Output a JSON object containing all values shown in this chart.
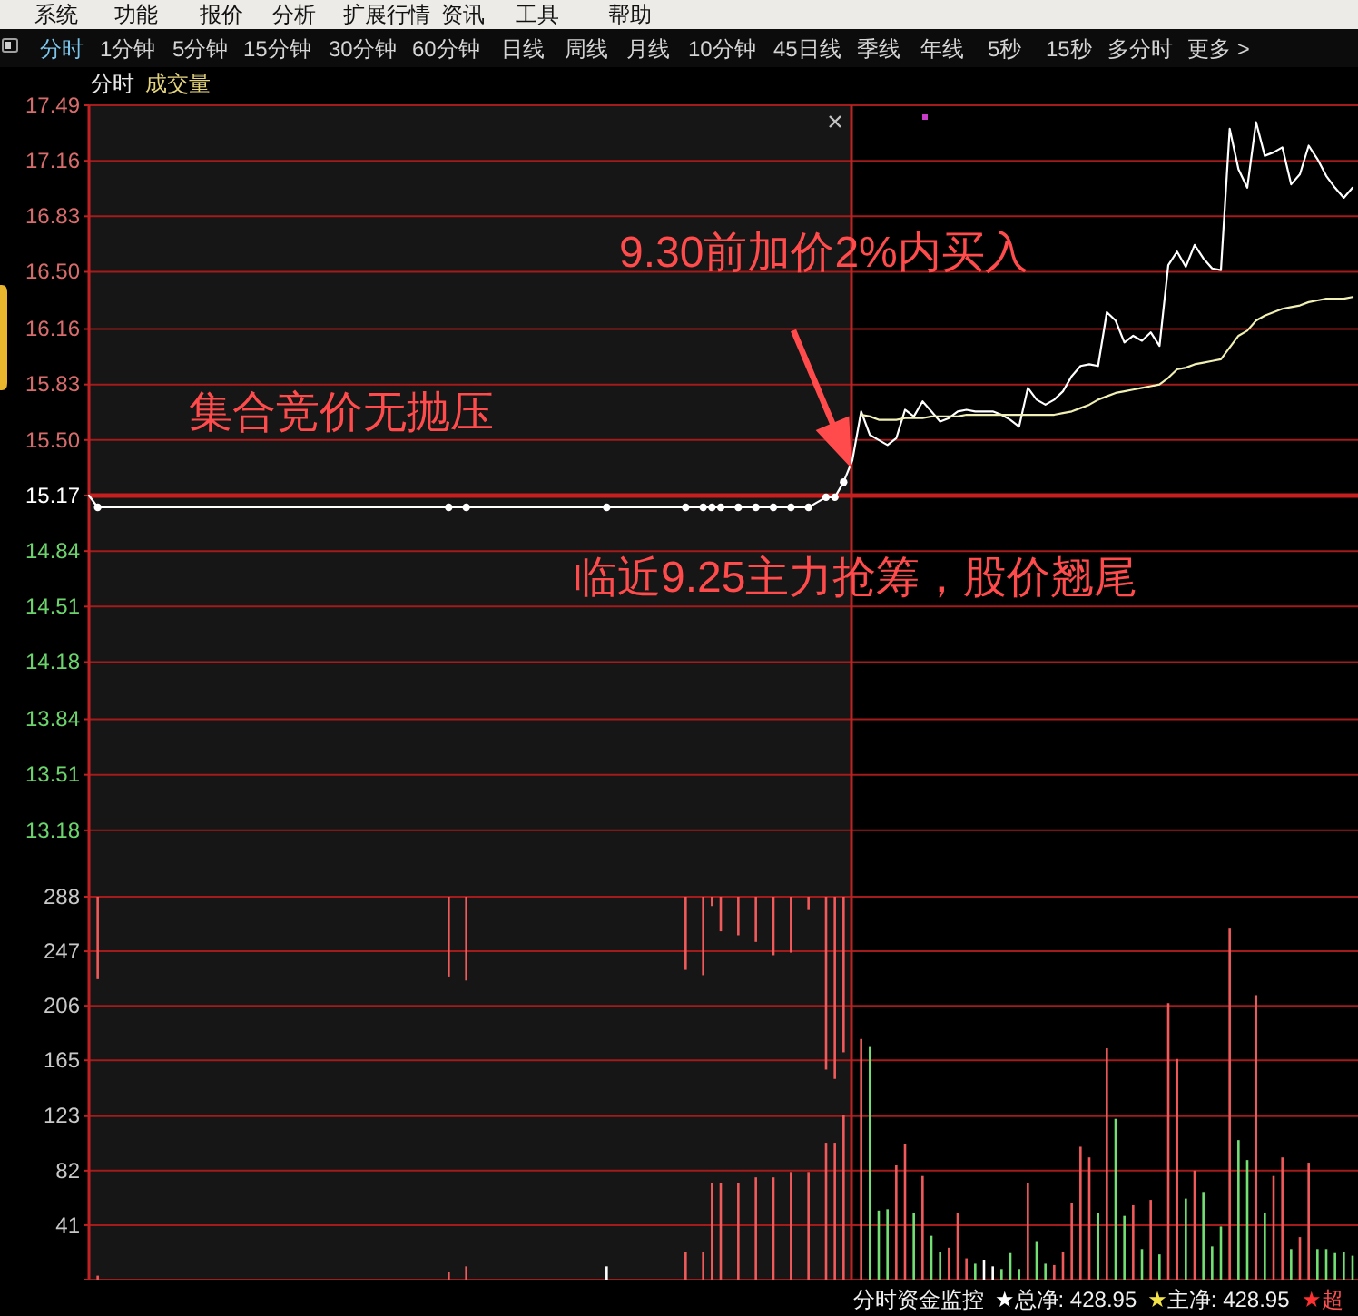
{
  "chart_data": [
    {
      "type": "other",
      "annotations": [
        "系统",
        "功能",
        "报价",
        "分析",
        "扩展行情",
        "资讯",
        "工具",
        "帮助"
      ]
    },
    {
      "type": "other",
      "annotations": [
        "分时",
        "1分钟",
        "5分钟",
        "15分钟",
        "30分钟",
        "60分钟",
        "日线",
        "周线",
        "月线",
        "10分钟",
        "45日线",
        "季线",
        "年线",
        "5秒",
        "15秒",
        "多分时",
        "更多 >"
      ]
    },
    {
      "type": "other",
      "annotations": [
        "分时",
        "成交量"
      ]
    },
    {
      "type": "line",
      "categories": [
        null,
        null,
        null,
        null,
        null,
        null,
        null,
        null,
        null,
        null,
        null,
        null,
        null,
        null,
        null,
        null,
        null,
        null,
        null,
        null,
        null,
        null,
        null,
        null,
        null,
        null,
        null,
        null,
        null,
        null,
        null,
        null,
        null,
        null,
        null,
        null,
        null,
        null,
        null,
        null,
        null,
        null,
        null,
        null,
        null,
        null,
        null,
        null,
        null,
        null,
        null,
        null,
        null,
        null,
        null,
        null,
        null,
        null,
        null,
        null,
        null,
        null,
        null,
        null,
        null,
        null,
        null,
        null,
        null,
        null,
        null,
        null,
        null,
        null,
        null,
        null,
        null,
        null,
        null,
        null,
        null,
        null,
        null,
        null,
        null,
        null,
        null,
        null,
        null,
        null,
        null,
        null,
        null,
        null,
        null,
        null,
        null,
        null,
        null,
        null,
        null,
        null,
        null,
        null,
        null,
        null,
        null,
        null,
        null,
        null,
        null,
        null,
        null,
        null,
        null,
        null,
        null,
        null,
        null,
        null,
        null,
        null,
        null,
        null,
        null,
        null,
        null,
        null,
        null,
        null,
        null,
        null,
        null,
        null,
        null,
        null,
        null,
        null,
        null,
        null,
        null,
        null,
        null,
        null,
        null
      ],
      "series": [
        {
          "type": "line",
          "color": "#ffffff",
          "values": [
            15.17,
            15.1,
            15.1,
            15.1,
            15.1,
            15.1,
            15.1,
            15.1,
            15.1,
            15.1,
            15.1,
            15.1,
            15.1,
            15.1,
            15.1,
            15.1,
            15.1,
            15.1,
            15.1,
            15.1,
            15.1,
            15.1,
            15.1,
            15.1,
            15.1,
            15.1,
            15.1,
            15.1,
            15.1,
            15.1,
            15.1,
            15.1,
            15.1,
            15.1,
            15.1,
            15.1,
            15.1,
            15.1,
            15.1,
            15.1,
            15.1,
            15.1,
            15.1,
            15.1,
            15.1,
            15.1,
            15.1,
            15.1,
            15.1,
            15.1,
            15.1,
            15.1,
            15.1,
            15.1,
            15.1,
            15.1,
            15.1,
            15.1,
            15.1,
            15.1,
            15.1,
            15.1,
            15.1,
            15.1,
            15.1,
            15.1,
            15.1,
            15.1,
            15.1,
            15.1,
            15.1,
            15.1,
            15.1,
            15.1,
            15.1,
            15.1,
            15.1,
            15.1,
            15.1,
            15.1,
            15.1,
            15.1,
            15.1,
            15.13,
            15.16,
            15.16,
            15.25,
            15.38,
            15.67,
            15.53,
            15.5,
            15.47,
            15.51,
            15.68,
            15.64,
            15.73,
            15.67,
            15.61,
            15.63,
            15.67,
            15.68,
            15.67,
            15.67,
            15.67,
            15.65,
            15.62,
            15.58,
            15.81,
            15.74,
            15.71,
            15.74,
            15.79,
            15.88,
            15.94,
            15.95,
            15.94,
            16.26,
            16.21,
            16.08,
            16.12,
            16.09,
            16.14,
            16.06,
            16.54,
            16.62,
            16.53,
            16.66,
            16.58,
            16.52,
            16.51,
            17.35,
            17.11,
            17.0,
            17.39,
            17.19,
            17.21,
            17.24,
            17.02,
            17.08,
            17.25,
            17.17,
            17.07,
            17.0,
            16.94,
            17.0
          ]
        },
        {
          "type": "scatter",
          "color": "#ffffff",
          "marker": "circle",
          "values": [
            null,
            15.1,
            null,
            null,
            null,
            null,
            null,
            null,
            null,
            null,
            null,
            null,
            null,
            null,
            null,
            null,
            null,
            null,
            null,
            null,
            null,
            null,
            null,
            null,
            null,
            null,
            null,
            null,
            null,
            null,
            null,
            null,
            null,
            null,
            null,
            null,
            null,
            null,
            null,
            null,
            null,
            15.1,
            null,
            15.1,
            null,
            null,
            null,
            null,
            null,
            null,
            null,
            null,
            null,
            null,
            null,
            null,
            null,
            null,
            null,
            15.1,
            null,
            null,
            null,
            null,
            null,
            null,
            null,
            null,
            15.1,
            null,
            15.1,
            15.1,
            15.1,
            null,
            15.1,
            null,
            15.1,
            null,
            15.1,
            null,
            15.1,
            null,
            15.1,
            null,
            15.16,
            15.16,
            15.25,
            null,
            null,
            null,
            null,
            null,
            null,
            null,
            null,
            null,
            null,
            null,
            null,
            null,
            null,
            null,
            null,
            null,
            null,
            null,
            null,
            null,
            null,
            null,
            null,
            null,
            null,
            null,
            null,
            null,
            null,
            null,
            null,
            null,
            null,
            null,
            null,
            null,
            null,
            null,
            null,
            null,
            null,
            null,
            null,
            null,
            null,
            null,
            null,
            null,
            null,
            null,
            null,
            null,
            null,
            null,
            null,
            null,
            null
          ]
        },
        {
          "type": "line",
          "color": "#f0f0b4",
          "values": [
            null,
            null,
            null,
            null,
            null,
            null,
            null,
            null,
            null,
            null,
            null,
            null,
            null,
            null,
            null,
            null,
            null,
            null,
            null,
            null,
            null,
            null,
            null,
            null,
            null,
            null,
            null,
            null,
            null,
            null,
            null,
            null,
            null,
            null,
            null,
            null,
            null,
            null,
            null,
            null,
            null,
            null,
            null,
            null,
            null,
            null,
            null,
            null,
            null,
            null,
            null,
            null,
            null,
            null,
            null,
            null,
            null,
            null,
            null,
            null,
            null,
            null,
            null,
            null,
            null,
            null,
            null,
            null,
            null,
            null,
            null,
            null,
            null,
            null,
            null,
            null,
            null,
            null,
            null,
            null,
            null,
            null,
            null,
            null,
            null,
            null,
            null,
            null,
            15.65,
            15.64,
            15.62,
            15.62,
            15.62,
            15.63,
            15.63,
            15.63,
            15.64,
            15.64,
            15.64,
            15.64,
            15.65,
            15.65,
            15.65,
            15.65,
            15.65,
            15.65,
            15.65,
            15.65,
            15.65,
            15.65,
            15.65,
            15.66,
            15.67,
            15.69,
            15.71,
            15.74,
            15.76,
            15.78,
            15.79,
            15.8,
            15.81,
            15.82,
            15.83,
            15.87,
            15.92,
            15.93,
            15.95,
            15.96,
            15.97,
            15.98,
            16.05,
            16.12,
            16.15,
            16.21,
            16.24,
            16.26,
            16.28,
            16.29,
            16.3,
            16.32,
            16.33,
            16.34,
            16.34,
            16.34,
            16.35
          ]
        }
      ],
      "ylim": [
        12.85,
        17.49
      ],
      "yticks": [
        17.49,
        17.16,
        16.83,
        {
          "value": 16.5,
          "label": "16.50"
        },
        16.16,
        15.83,
        {
          "value": 15.5,
          "label": "15.50"
        },
        15.17,
        14.84,
        14.51,
        14.18,
        13.84,
        13.51,
        13.18
      ],
      "grid": "y",
      "tick_labels": "y",
      "ref_lines": [
        {
          "axis": "y",
          "value": 15.17,
          "color": "#c81e1e"
        }
      ],
      "annotations": [
        "9.30前加价2%内买入",
        "集合竞价无抛压",
        "临近9.25主力抢筹，股价翘尾"
      ]
    },
    {
      "type": "bar",
      "categories": [
        null,
        null,
        null,
        null,
        null,
        null,
        null,
        null,
        null,
        null,
        null,
        null,
        null,
        null,
        null,
        null,
        null,
        null,
        null,
        null,
        null,
        null,
        null,
        null,
        null,
        null,
        null,
        null,
        null,
        null,
        null,
        null,
        null,
        null,
        null,
        null,
        null,
        null,
        null,
        null,
        null,
        null,
        null,
        null,
        null,
        null,
        null,
        null,
        null,
        null,
        null,
        null,
        null,
        null,
        null,
        null,
        null,
        null,
        null,
        null,
        null,
        null,
        null,
        null,
        null,
        null,
        null,
        null,
        null,
        null,
        null,
        null,
        null,
        null,
        null,
        null,
        null,
        null,
        null,
        null,
        null,
        null,
        null,
        null,
        null,
        null,
        null,
        null,
        null,
        null,
        null,
        null,
        null,
        null,
        null,
        null,
        null,
        null,
        null,
        null,
        null,
        null,
        null,
        null,
        null,
        null,
        null,
        null,
        null,
        null,
        null,
        null,
        null,
        null,
        null,
        null,
        null,
        null,
        null,
        null,
        null,
        null,
        null,
        null,
        null,
        null,
        null,
        null,
        null,
        null,
        null,
        null,
        null,
        null,
        null,
        null,
        null,
        null,
        null,
        null,
        null,
        null,
        null,
        null,
        null
      ],
      "series": [
        {
          "values": [
            null,
            3,
            null,
            null,
            null,
            null,
            null,
            null,
            null,
            null,
            null,
            null,
            null,
            null,
            null,
            null,
            null,
            null,
            null,
            null,
            null,
            null,
            null,
            null,
            null,
            null,
            null,
            null,
            null,
            null,
            null,
            null,
            null,
            null,
            null,
            null,
            null,
            null,
            null,
            null,
            null,
            6,
            null,
            10,
            null,
            null,
            null,
            null,
            null,
            null,
            null,
            null,
            null,
            null,
            null,
            null,
            null,
            null,
            null,
            10,
            null,
            null,
            null,
            null,
            null,
            null,
            null,
            null,
            21,
            null,
            21,
            73,
            73,
            null,
            73,
            null,
            77,
            null,
            77,
            null,
            81,
            null,
            81,
            null,
            103,
            103,
            124,
            null,
            181,
            175,
            52,
            53,
            86,
            102,
            50,
            78,
            33,
            21,
            24,
            50,
            16,
            12,
            15,
            10,
            8,
            20,
            8,
            73,
            29,
            12,
            11,
            21,
            58,
            100,
            92,
            50,
            174,
            121,
            48,
            56,
            23,
            60,
            19,
            208,
            166,
            61,
            82,
            66,
            25,
            40,
            264,
            105,
            90,
            214,
            50,
            78,
            92,
            23,
            32,
            88,
            23,
            23,
            20,
            21,
            18
          ],
          "colors": [
            null,
            "#f05a5a",
            null,
            null,
            null,
            null,
            null,
            null,
            null,
            null,
            null,
            null,
            null,
            null,
            null,
            null,
            null,
            null,
            null,
            null,
            null,
            null,
            null,
            null,
            null,
            null,
            null,
            null,
            null,
            null,
            null,
            null,
            null,
            null,
            null,
            null,
            null,
            null,
            null,
            null,
            null,
            "#f05a5a",
            null,
            "#f05a5a",
            null,
            null,
            null,
            null,
            null,
            null,
            null,
            null,
            null,
            null,
            null,
            null,
            null,
            null,
            null,
            "#ffffff",
            null,
            null,
            null,
            null,
            null,
            null,
            null,
            null,
            "#f05a5a",
            null,
            "#f05a5a",
            "#f05a5a",
            "#f05a5a",
            null,
            "#f05a5a",
            null,
            "#f05a5a",
            null,
            "#f05a5a",
            null,
            "#f05a5a",
            null,
            "#f05a5a",
            null,
            "#f05a5a",
            "#f05a5a",
            "#f05a5a",
            null,
            "#f05a5a",
            "#72e072",
            "#72e072",
            "#72e072",
            "#f05a5a",
            "#f05a5a",
            "#72e072",
            "#f05a5a",
            "#72e072",
            "#72e072",
            "#f05a5a",
            "#f05a5a",
            "#f05a5a",
            "#72e072",
            "#ffffff",
            "#ffffff",
            "#72e072",
            "#72e072",
            "#72e072",
            "#f05a5a",
            "#72e072",
            "#72e072",
            "#f05a5a",
            "#f05a5a",
            "#f05a5a",
            "#f05a5a",
            "#f05a5a",
            "#72e072",
            "#f05a5a",
            "#72e072",
            "#72e072",
            "#f05a5a",
            "#72e072",
            "#f05a5a",
            "#72e072",
            "#f05a5a",
            "#f05a5a",
            "#72e072",
            "#f05a5a",
            "#72e072",
            "#72e072",
            "#72e072",
            "#f05a5a",
            "#72e072",
            "#72e072",
            "#f05a5a",
            "#72e072",
            "#f05a5a",
            "#f05a5a",
            "#72e072",
            "#f05a5a",
            "#f05a5a",
            "#72e072",
            "#72e072",
            "#72e072",
            "#72e072",
            "#72e072"
          ]
        },
        {
          "color": "#f05a5a",
          "values": [
            null,
            62,
            null,
            null,
            null,
            null,
            null,
            null,
            null,
            null,
            null,
            null,
            null,
            null,
            null,
            null,
            null,
            null,
            null,
            null,
            null,
            null,
            null,
            null,
            null,
            null,
            null,
            null,
            null,
            null,
            null,
            null,
            null,
            null,
            null,
            null,
            null,
            null,
            null,
            null,
            null,
            60,
            null,
            63,
            null,
            null,
            null,
            null,
            null,
            null,
            null,
            null,
            null,
            null,
            null,
            null,
            null,
            null,
            null,
            null,
            null,
            null,
            null,
            null,
            null,
            null,
            null,
            null,
            55,
            null,
            59,
            7,
            26,
            null,
            29,
            null,
            34,
            null,
            44,
            null,
            42,
            null,
            10,
            null,
            130,
            137,
            117,
            null,
            null,
            null,
            null,
            null,
            null,
            null,
            null,
            null,
            null,
            null,
            null,
            null,
            null,
            null,
            null,
            null,
            null,
            null,
            null,
            null,
            null,
            null,
            null,
            null,
            null,
            null,
            null,
            null,
            null,
            null,
            null,
            null,
            null,
            null,
            null,
            null,
            null,
            null,
            null,
            null,
            null,
            null,
            null,
            null,
            null,
            null,
            null,
            null,
            null,
            null,
            null,
            null,
            null,
            null,
            null,
            null,
            null
          ],
          "base": [
            null,
            226,
            null,
            null,
            null,
            null,
            null,
            null,
            null,
            null,
            null,
            null,
            null,
            null,
            null,
            null,
            null,
            null,
            null,
            null,
            null,
            null,
            null,
            null,
            null,
            null,
            null,
            null,
            null,
            null,
            null,
            null,
            null,
            null,
            null,
            null,
            null,
            null,
            null,
            null,
            null,
            228,
            null,
            225,
            null,
            null,
            null,
            null,
            null,
            null,
            null,
            null,
            null,
            null,
            null,
            null,
            null,
            null,
            null,
            null,
            null,
            null,
            null,
            null,
            null,
            null,
            null,
            null,
            233,
            null,
            229,
            281,
            262,
            null,
            259,
            null,
            254,
            null,
            244,
            null,
            246,
            null,
            278,
            null,
            158,
            151,
            171,
            null,
            null,
            null,
            null,
            null,
            null,
            null,
            null,
            null,
            null,
            null,
            null,
            null,
            null,
            null,
            null,
            null,
            null,
            null,
            null,
            null,
            null,
            null,
            null,
            null,
            null,
            null,
            null,
            null,
            null,
            null,
            null,
            null,
            null,
            null,
            null,
            null,
            null,
            null,
            null,
            null,
            null,
            null,
            null,
            null,
            null,
            null,
            null,
            null,
            null,
            null,
            null,
            null,
            null,
            null,
            null,
            null,
            null
          ]
        }
      ],
      "ylim": [
        0,
        288
      ],
      "yticks": [
        {
          "value": 0,
          "label": null
        },
        41,
        82,
        123,
        165,
        206,
        247,
        288
      ],
      "grid": "y",
      "tick_labels": "y"
    },
    {
      "type": "other",
      "annotations": [
        "分时资金监控",
        "★总净: 428.95",
        "★主净: 428.95",
        "★超"
      ]
    }
  ]
}
